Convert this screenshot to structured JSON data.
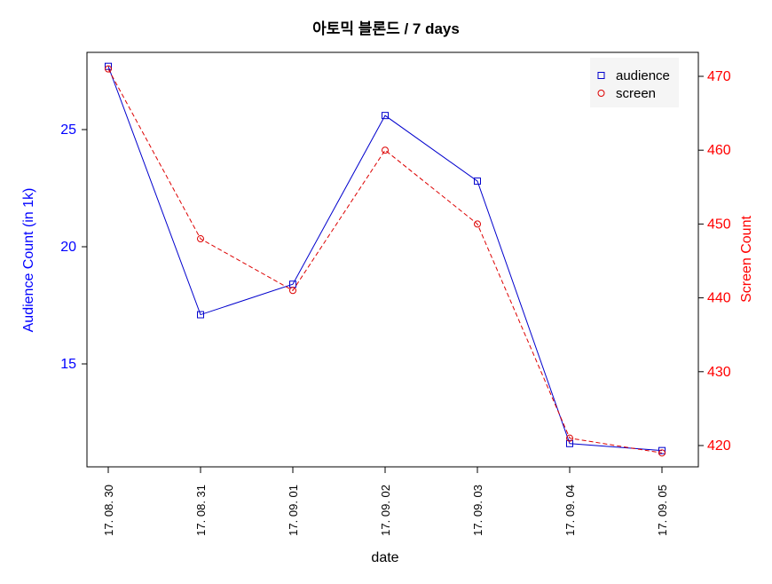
{
  "chart_data": {
    "type": "line",
    "title": "아토믹 블론드 / 7 days",
    "xlabel": "date",
    "ylabel_left": "Audience Count (in 1k)",
    "ylabel_right": "Screen Count",
    "categories": [
      "17. 08. 30",
      "17. 08. 31",
      "17. 09. 01",
      "17. 09. 02",
      "17. 09. 03",
      "17. 09. 04",
      "17. 09. 05"
    ],
    "y_left": {
      "ticks": [
        15,
        20,
        25
      ],
      "range": [
        11.3,
        27.7
      ],
      "color": "#0000ff"
    },
    "y_right": {
      "ticks": [
        420,
        430,
        440,
        450,
        460,
        470
      ],
      "range": [
        419,
        471
      ],
      "color": "#ff0000"
    },
    "series": [
      {
        "name": "audience",
        "axis": "left",
        "color": "#0000cd",
        "line": "solid",
        "marker": "square",
        "values": [
          27.7,
          17.1,
          18.4,
          25.6,
          22.8,
          11.6,
          11.3
        ]
      },
      {
        "name": "screen",
        "axis": "right",
        "color": "#dd0000",
        "line": "dashed",
        "marker": "circle",
        "values": [
          471,
          448,
          441,
          460,
          450,
          421,
          419
        ]
      }
    ],
    "legend_position": "top-right",
    "grid": false
  }
}
